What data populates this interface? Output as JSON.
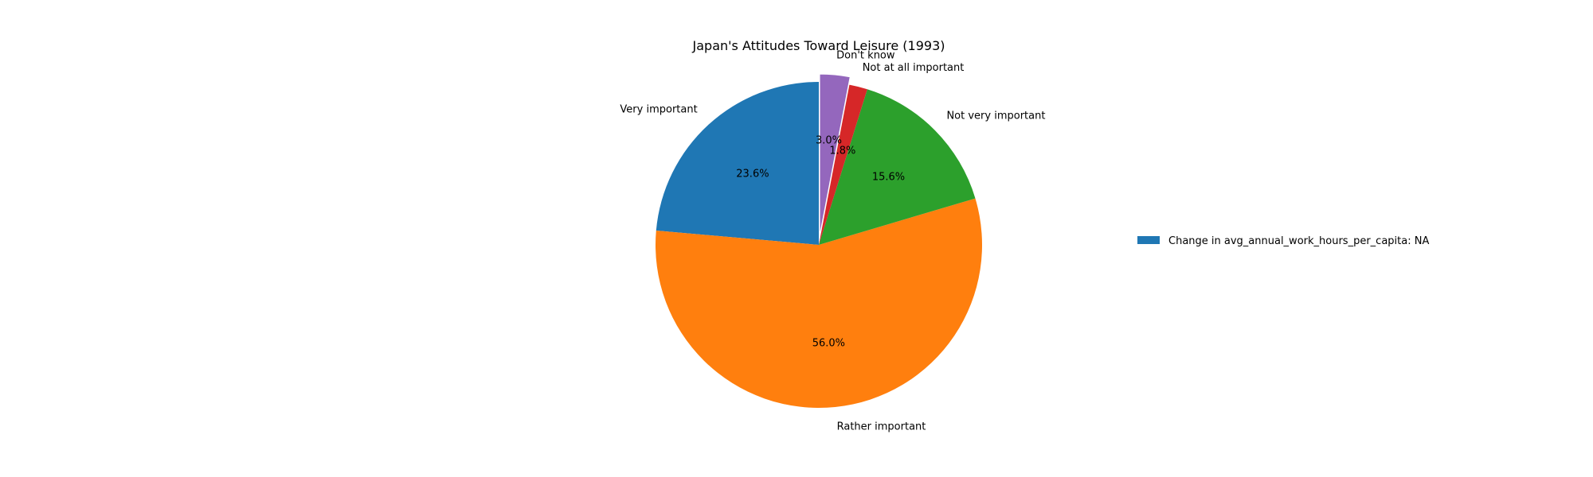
{
  "chart_data": {
    "type": "pie",
    "title": "Japan's Attitudes Toward Leisure (1993)",
    "slices": [
      {
        "label": "Very important",
        "value": 23.6,
        "pct_label": "23.6%",
        "color": "#1f77b4",
        "exploded": false
      },
      {
        "label": "Rather important",
        "value": 56.0,
        "pct_label": "56.0%",
        "color": "#ff7f0e",
        "exploded": false
      },
      {
        "label": "Not very important",
        "value": 15.6,
        "pct_label": "15.6%",
        "color": "#2ca02c",
        "exploded": false
      },
      {
        "label": "Not at all important",
        "value": 1.8,
        "pct_label": "1.8%",
        "color": "#d62728",
        "exploded": false
      },
      {
        "label": "Don't know",
        "value": 3.0,
        "pct_label": "3.0%",
        "color": "#9467bd",
        "exploded": true
      }
    ],
    "start_angle_deg": 90,
    "direction": "counterclockwise",
    "legend": {
      "placement": "right",
      "entries": [
        {
          "label": "Change in avg_annual_work_hours_per_capita: NA",
          "color": "#1f77b4"
        }
      ]
    }
  }
}
